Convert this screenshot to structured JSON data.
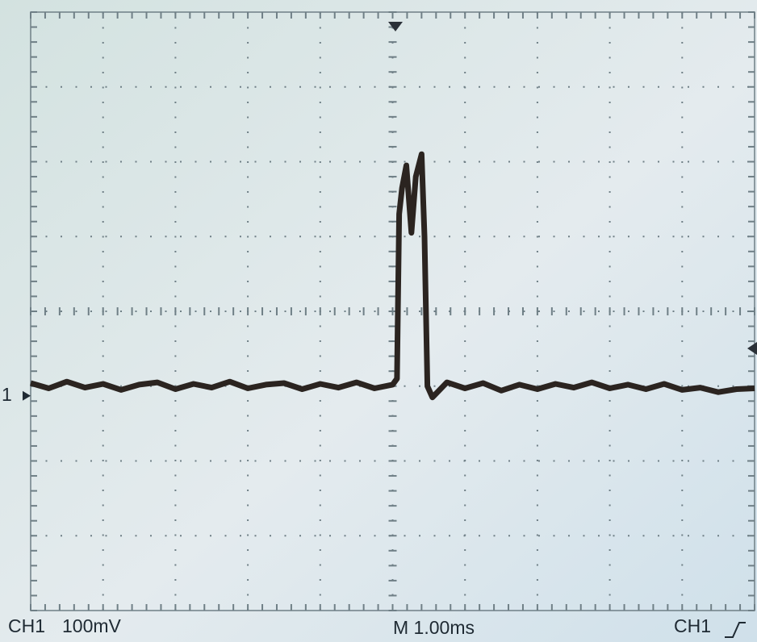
{
  "chart_data": {
    "type": "line",
    "annotations": [
      "CH1",
      "100mV",
      "M 1.00ms",
      "CH1",
      "1"
    ],
    "x": [
      -5,
      -4.75,
      -4.5,
      -4.25,
      -4,
      -3.75,
      -3.5,
      -3.25,
      -3,
      -2.75,
      -2.5,
      -2.25,
      -2,
      -1.75,
      -1.5,
      -1.25,
      -1,
      -0.75,
      -0.5,
      -0.25,
      0,
      0.06,
      0.09,
      0.13,
      0.19,
      0.26,
      0.32,
      0.4,
      0.44,
      0.48,
      0.55,
      0.75,
      1,
      1.25,
      1.5,
      1.75,
      2,
      2.25,
      2.5,
      2.75,
      3,
      3.25,
      3.5,
      3.75,
      4,
      4.25,
      4.5,
      4.75,
      5
    ],
    "values": [
      4,
      -3,
      6,
      -2,
      3,
      -5,
      2,
      5,
      -4,
      3,
      -2,
      6,
      -3,
      2,
      4,
      -4,
      3,
      -2,
      5,
      -3,
      2,
      10,
      230,
      265,
      295,
      205,
      280,
      310,
      200,
      0,
      -15,
      5,
      -3,
      4,
      -6,
      2,
      -4,
      3,
      -2,
      5,
      -3,
      2,
      -4,
      3,
      -5,
      -2,
      -8,
      -4,
      -3
    ],
    "xlim": [
      -5,
      5
    ],
    "ylim": [
      -300,
      500
    ],
    "grid": true,
    "color": "#2b2420"
  }
}
